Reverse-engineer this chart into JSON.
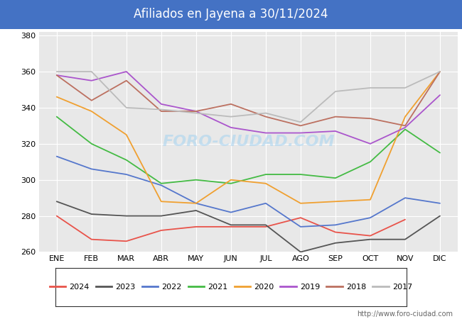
{
  "title": "Afiliados en Jayena a 30/11/2024",
  "title_bg_color": "#4472c4",
  "title_text_color": "white",
  "ylim": [
    260,
    382
  ],
  "yticks": [
    260,
    280,
    300,
    320,
    340,
    360,
    380
  ],
  "months": [
    "ENE",
    "FEB",
    "MAR",
    "ABR",
    "MAY",
    "JUN",
    "JUL",
    "AGO",
    "SEP",
    "OCT",
    "NOV",
    "DIC"
  ],
  "watermark": "FORO-CIUDAD.COM",
  "url": "http://www.foro-ciudad.com",
  "plot_bg_color": "#e8e8e8",
  "series": {
    "2024": {
      "color": "#e8534a",
      "values": [
        280,
        267,
        266,
        272,
        274,
        274,
        274,
        279,
        271,
        269,
        278,
        null
      ]
    },
    "2023": {
      "color": "#555555",
      "values": [
        288,
        281,
        280,
        280,
        283,
        275,
        275,
        260,
        265,
        267,
        267,
        280
      ]
    },
    "2022": {
      "color": "#5577cc",
      "values": [
        313,
        306,
        303,
        297,
        287,
        282,
        287,
        274,
        275,
        279,
        290,
        287
      ]
    },
    "2021": {
      "color": "#44bb44",
      "values": [
        335,
        320,
        311,
        298,
        300,
        298,
        303,
        303,
        301,
        310,
        328,
        315
      ]
    },
    "2020": {
      "color": "#f0a030",
      "values": [
        346,
        338,
        325,
        288,
        287,
        300,
        298,
        287,
        288,
        289,
        335,
        360
      ]
    },
    "2019": {
      "color": "#aa55cc",
      "values": [
        358,
        355,
        360,
        342,
        338,
        329,
        326,
        326,
        327,
        320,
        329,
        347
      ]
    },
    "2018": {
      "color": "#bc7060",
      "values": [
        358,
        344,
        355,
        338,
        338,
        342,
        335,
        330,
        335,
        334,
        330,
        360
      ]
    },
    "2017": {
      "color": "#bbbbbb",
      "values": [
        360,
        360,
        340,
        339,
        337,
        335,
        337,
        332,
        349,
        351,
        351,
        360
      ]
    }
  },
  "legend_order": [
    "2024",
    "2023",
    "2022",
    "2021",
    "2020",
    "2019",
    "2018",
    "2017"
  ]
}
